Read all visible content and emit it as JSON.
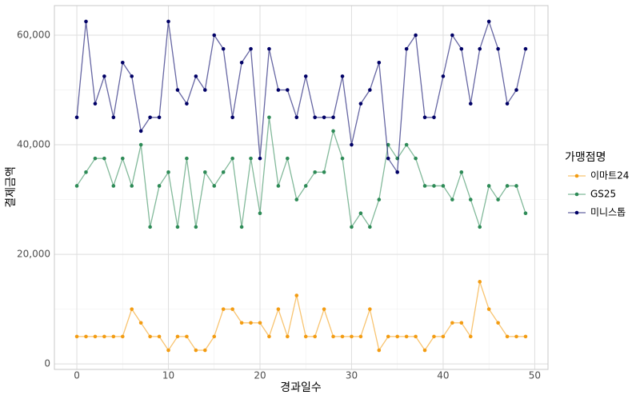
{
  "chart_data": {
    "type": "line",
    "x_label": "경과일수",
    "y_label": "결제금액",
    "legend_title": "가맹점명",
    "legend_position": "right",
    "grid": true,
    "x": [
      0,
      1,
      2,
      3,
      4,
      5,
      6,
      7,
      8,
      9,
      10,
      11,
      12,
      13,
      14,
      15,
      16,
      17,
      18,
      19,
      20,
      21,
      22,
      23,
      24,
      25,
      26,
      27,
      28,
      29,
      30,
      31,
      32,
      33,
      34,
      35,
      36,
      37,
      38,
      39,
      40,
      41,
      42,
      43,
      44,
      45,
      46,
      47,
      48,
      49
    ],
    "series": [
      {
        "name": "이마트24",
        "color": "#f39c12",
        "values": [
          5000,
          5000,
          5000,
          5000,
          5000,
          5000,
          10000,
          7500,
          5000,
          5000,
          2500,
          5000,
          5000,
          2500,
          2500,
          5000,
          10000,
          10000,
          7500,
          7500,
          7500,
          5000,
          10000,
          5000,
          12500,
          5000,
          5000,
          10000,
          5000,
          5000,
          5000,
          5000,
          10000,
          2500,
          5000,
          5000,
          5000,
          5000,
          2500,
          5000,
          5000,
          7500,
          7500,
          5000,
          15000,
          10000,
          7500,
          5000,
          5000,
          5000
        ]
      },
      {
        "name": "GS25",
        "color": "#2e8b57",
        "values": [
          32500,
          35000,
          37500,
          37500,
          32500,
          37500,
          32500,
          40000,
          25000,
          32500,
          35000,
          25000,
          37500,
          25000,
          35000,
          32500,
          35000,
          37500,
          25000,
          37500,
          27500,
          45000,
          32500,
          37500,
          30000,
          32500,
          35000,
          35000,
          42500,
          37500,
          25000,
          27500,
          25000,
          30000,
          40000,
          37500,
          40000,
          37500,
          32500,
          32500,
          32500,
          30000,
          35000,
          30000,
          25000,
          32500,
          30000,
          32500,
          32500,
          27500
        ]
      },
      {
        "name": "미니스톱",
        "color": "#000066",
        "values": [
          45000,
          62500,
          47500,
          52500,
          45000,
          55000,
          52500,
          42500,
          45000,
          45000,
          62500,
          50000,
          47500,
          52500,
          50000,
          60000,
          57500,
          45000,
          55000,
          57500,
          37500,
          57500,
          50000,
          50000,
          45000,
          52500,
          45000,
          45000,
          45000,
          52500,
          40000,
          47500,
          50000,
          55000,
          37500,
          35000,
          57500,
          60000,
          45000,
          45000,
          52500,
          60000,
          57500,
          47500,
          57500,
          62500,
          57500,
          47500,
          50000,
          57500
        ]
      }
    ],
    "xlim": [
      -2.45,
      51.45
    ],
    "xticks": [
      0,
      10,
      20,
      30,
      40,
      50
    ],
    "ylim": [
      -1000,
      65400
    ],
    "yticks": [
      0,
      {
        "value": 20000,
        "label": "20,000"
      },
      {
        "value": 40000,
        "label": "40,000"
      },
      {
        "value": 60000,
        "label": "60,000"
      }
    ]
  }
}
